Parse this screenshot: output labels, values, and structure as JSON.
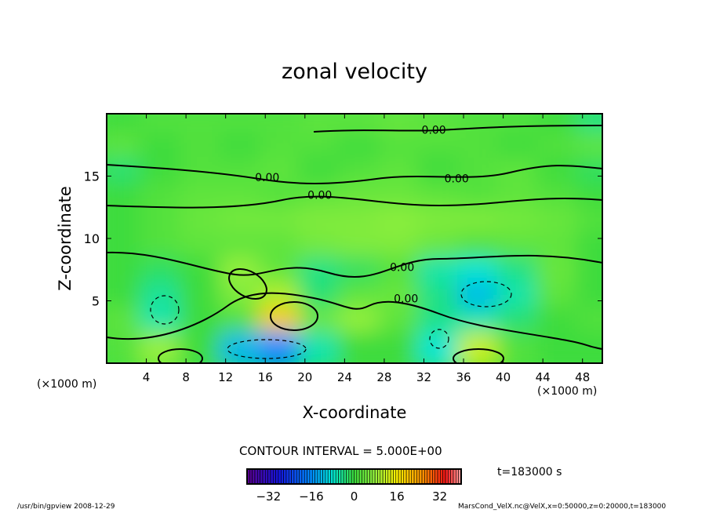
{
  "chart_data": {
    "type": "heatmap",
    "title": "zonal velocity",
    "xlabel": "X-coordinate",
    "ylabel": "Z-coordinate",
    "x_unit_label": "(×1000 m)",
    "xlim": [
      0,
      50
    ],
    "ylim": [
      0,
      20
    ],
    "x_ticks": [
      4,
      8,
      12,
      16,
      20,
      24,
      28,
      32,
      36,
      40,
      44,
      48
    ],
    "y_ticks": [
      5,
      10,
      15
    ],
    "grid_x": [
      2,
      6,
      10,
      14,
      18,
      22,
      26,
      30,
      34,
      38,
      42,
      46,
      50
    ],
    "grid_z": [
      19,
      17,
      15,
      13,
      11,
      9,
      7,
      5,
      3,
      1
    ],
    "values": [
      [
        0,
        2,
        2,
        2,
        2,
        3,
        3,
        4,
        3,
        2,
        2,
        0,
        -4
      ],
      [
        3,
        0,
        2,
        0,
        2,
        2,
        0,
        2,
        2,
        2,
        0,
        2,
        3
      ],
      [
        -3,
        0,
        2,
        2,
        3,
        0,
        2,
        3,
        0,
        2,
        3,
        0,
        -2
      ],
      [
        0,
        2,
        3,
        3,
        2,
        3,
        4,
        4,
        3,
        2,
        3,
        2,
        0
      ],
      [
        0,
        2,
        4,
        5,
        5,
        6,
        6,
        7,
        6,
        6,
        5,
        4,
        2
      ],
      [
        0,
        2,
        3,
        3,
        3,
        5,
        6,
        6,
        4,
        2,
        3,
        3,
        0
      ],
      [
        0,
        -2,
        0,
        8,
        3,
        -4,
        -2,
        2,
        -6,
        -8,
        -4,
        4,
        0
      ],
      [
        0,
        -5,
        0,
        6,
        10,
        -3,
        3,
        4,
        -4,
        -12,
        -6,
        3,
        0
      ],
      [
        3,
        -6,
        0,
        2,
        20,
        4,
        8,
        3,
        -4,
        -6,
        -3,
        0,
        2
      ],
      [
        2,
        8,
        0,
        -12,
        -16,
        -6,
        0,
        0,
        -8,
        12,
        2,
        0,
        0
      ]
    ],
    "contour_labels": [
      {
        "text": "0.00",
        "x": 33.0,
        "z": 18.7
      },
      {
        "text": "0.00",
        "x": 16.2,
        "z": 14.9
      },
      {
        "text": "0.00",
        "x": 21.5,
        "z": 13.5
      },
      {
        "text": "0.00",
        "x": 35.3,
        "z": 14.8
      },
      {
        "text": "0.00",
        "x": 29.8,
        "z": 7.7
      },
      {
        "text": "0.00",
        "x": 30.2,
        "z": 5.2
      }
    ],
    "contour_interval_label": "CONTOUR INTERVAL = 5.000E+00",
    "colorbar": {
      "range": [
        -40,
        40
      ],
      "ticks": [
        -32,
        -16,
        0,
        16,
        32
      ],
      "tick_labels": [
        "−32",
        "−16",
        "0",
        "16",
        "32"
      ]
    }
  },
  "time_label": "t=183000 s",
  "footer_left": "/usr/bin/gpview   2008-12-29",
  "footer_right": "MarsCond_VelX.nc@VelX,x=0:50000,z=0:20000,t=183000"
}
